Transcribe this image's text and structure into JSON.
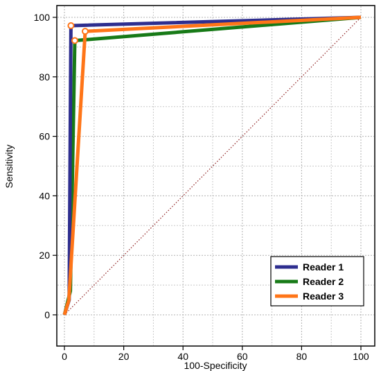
{
  "chart_data": {
    "type": "line",
    "title": "",
    "xlabel": "100-Specificity",
    "ylabel": "Sensitivity",
    "xlim": [
      0,
      100
    ],
    "ylim": [
      0,
      100
    ],
    "xticks": [
      "0",
      "20",
      "40",
      "60",
      "80",
      "100"
    ],
    "yticks": [
      "0",
      "20",
      "40",
      "60",
      "80",
      "100"
    ],
    "grid": true,
    "legend_position": "bottom-right",
    "diagonal_reference": {
      "points": [
        [
          0,
          0
        ],
        [
          100,
          100
        ]
      ],
      "style": "dotted",
      "color": "#8b1a1a"
    },
    "series": [
      {
        "name": "Reader 1",
        "color": "#2e2e8f",
        "points": [
          [
            0,
            0
          ],
          [
            1.6,
            5
          ],
          [
            2.2,
            97.2
          ],
          [
            100,
            100
          ]
        ],
        "marker": null
      },
      {
        "name": "Reader 2",
        "color": "#177a17",
        "points": [
          [
            0,
            0
          ],
          [
            2.0,
            8
          ],
          [
            3.5,
            92.2
          ],
          [
            100,
            100
          ]
        ],
        "marker": [
          3.5,
          92.2
        ]
      },
      {
        "name": "Reader 3",
        "color": "#ff7518",
        "points": [
          [
            0,
            0
          ],
          [
            1.5,
            5
          ],
          [
            7.0,
            95.3
          ],
          [
            100,
            100
          ]
        ],
        "marker": [
          7.0,
          95.3
        ]
      }
    ],
    "extra_marker": {
      "series": "Reader 1",
      "point": [
        2.2,
        97.2
      ]
    }
  }
}
